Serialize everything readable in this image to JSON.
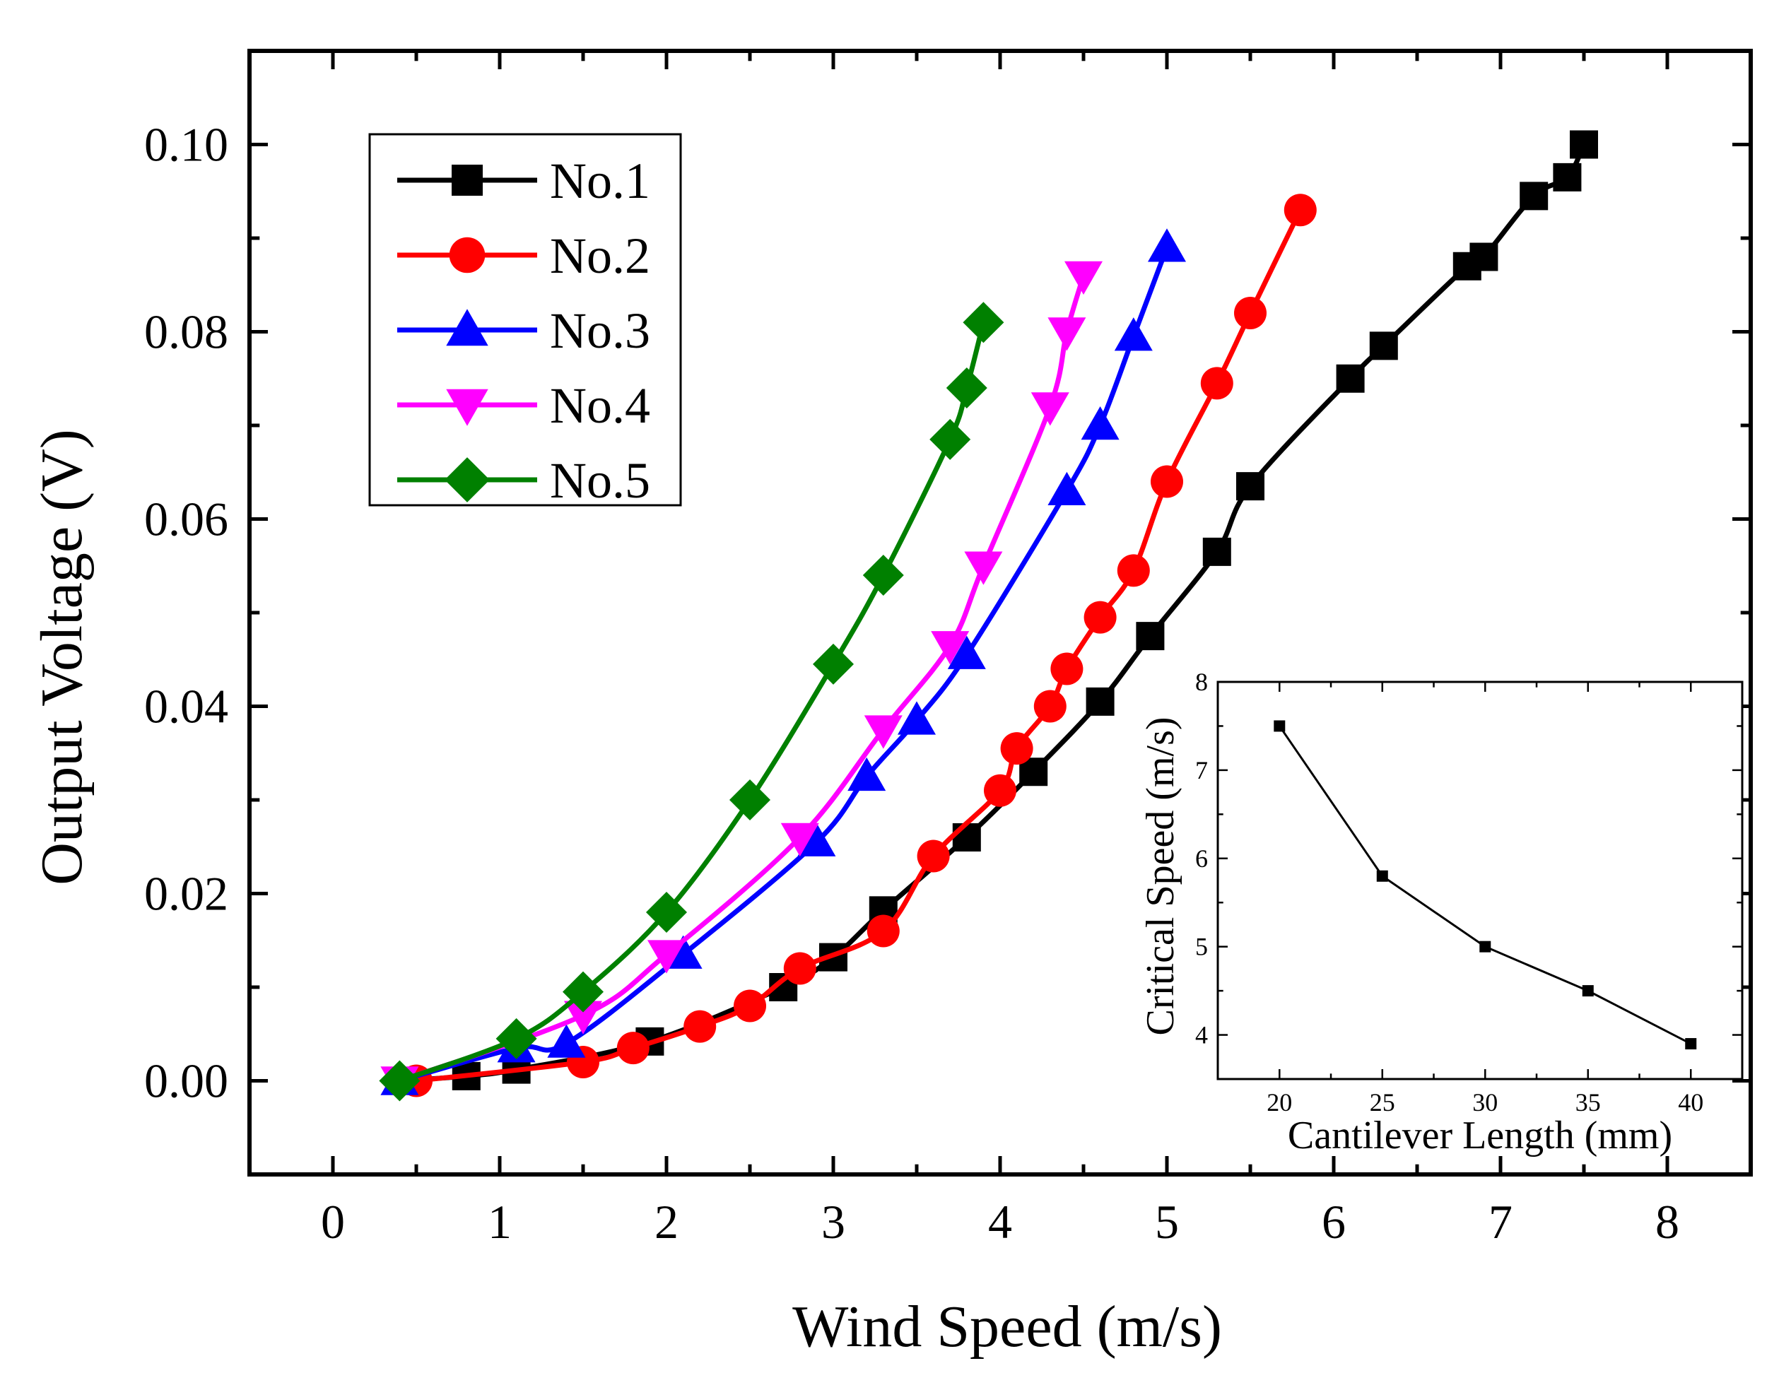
{
  "chart_data": [
    {
      "type": "line",
      "title": "",
      "xlabel": "Wind Speed (m/s)",
      "ylabel": "Output Voltage (V)",
      "xlim": [
        -0.5,
        8.5
      ],
      "ylim": [
        -0.01,
        0.11
      ],
      "x_ticks": [
        "0",
        "1",
        "2",
        "3",
        "4",
        "5",
        "6",
        "7",
        "8"
      ],
      "y_ticks": [
        "0.00",
        "0.02",
        "0.04",
        "0.06",
        "0.08",
        "0.10"
      ],
      "x_tick_values": [
        0,
        1,
        2,
        3,
        4,
        5,
        6,
        7,
        8
      ],
      "y_tick_values": [
        0,
        0.02,
        0.04,
        0.06,
        0.08,
        0.1
      ],
      "legend_position": "top-left",
      "series": [
        {
          "name": "No.1",
          "color": "#000000",
          "marker": "square",
          "points": [
            [
              0.4,
              0.0
            ],
            [
              0.8,
              0.0005
            ],
            [
              1.1,
              0.0012
            ],
            [
              1.9,
              0.0042
            ],
            [
              2.7,
              0.01
            ],
            [
              3.0,
              0.0132
            ],
            [
              3.3,
              0.0182
            ],
            [
              3.8,
              0.026
            ],
            [
              4.2,
              0.033
            ],
            [
              4.6,
              0.0405
            ],
            [
              4.9,
              0.0475
            ],
            [
              5.3,
              0.0565
            ],
            [
              5.5,
              0.0635
            ],
            [
              6.1,
              0.075
            ],
            [
              6.3,
              0.0785
            ],
            [
              6.8,
              0.087
            ],
            [
              6.9,
              0.088
            ],
            [
              7.2,
              0.0945
            ],
            [
              7.4,
              0.0965
            ],
            [
              7.5,
              0.1
            ]
          ]
        },
        {
          "name": "No.2",
          "color": "#ff0000",
          "marker": "circle",
          "points": [
            [
              0.5,
              0.0
            ],
            [
              1.5,
              0.002
            ],
            [
              1.8,
              0.0035
            ],
            [
              2.2,
              0.0058
            ],
            [
              2.5,
              0.008
            ],
            [
              2.8,
              0.012
            ],
            [
              3.3,
              0.016
            ],
            [
              3.6,
              0.024
            ],
            [
              4.0,
              0.031
            ],
            [
              4.1,
              0.0355
            ],
            [
              4.3,
              0.04
            ],
            [
              4.4,
              0.044
            ],
            [
              4.6,
              0.0495
            ],
            [
              4.8,
              0.0545
            ],
            [
              5.0,
              0.064
            ],
            [
              5.3,
              0.0745
            ],
            [
              5.5,
              0.082
            ],
            [
              5.8,
              0.093
            ]
          ]
        },
        {
          "name": "No.3",
          "color": "#0000ff",
          "marker": "triangle-up",
          "points": [
            [
              0.4,
              0.0
            ],
            [
              1.1,
              0.0035
            ],
            [
              1.4,
              0.004
            ],
            [
              2.1,
              0.0135
            ],
            [
              2.9,
              0.0255
            ],
            [
              3.2,
              0.0325
            ],
            [
              3.5,
              0.0385
            ],
            [
              3.8,
              0.0455
            ],
            [
              4.4,
              0.063
            ],
            [
              4.6,
              0.07
            ],
            [
              4.8,
              0.0795
            ],
            [
              5.0,
              0.089
            ]
          ]
        },
        {
          "name": "No.4",
          "color": "#ff00ff",
          "marker": "triangle-down",
          "points": [
            [
              0.4,
              0.0
            ],
            [
              1.5,
              0.007
            ],
            [
              2.0,
              0.0135
            ],
            [
              2.8,
              0.026
            ],
            [
              3.3,
              0.0375
            ],
            [
              3.7,
              0.0465
            ],
            [
              3.9,
              0.055
            ],
            [
              4.3,
              0.072
            ],
            [
              4.4,
              0.08
            ],
            [
              4.5,
              0.086
            ]
          ]
        },
        {
          "name": "No.5",
          "color": "#008000",
          "marker": "diamond",
          "points": [
            [
              0.4,
              0.0
            ],
            [
              1.1,
              0.0045
            ],
            [
              1.5,
              0.0095
            ],
            [
              2.0,
              0.018
            ],
            [
              2.5,
              0.03
            ],
            [
              3.0,
              0.0445
            ],
            [
              3.3,
              0.054
            ],
            [
              3.7,
              0.0685
            ],
            [
              3.8,
              0.074
            ],
            [
              3.9,
              0.081
            ]
          ]
        }
      ]
    },
    {
      "type": "line",
      "title": "",
      "xlabel": "Cantilever Length (mm)",
      "ylabel": "Critical Speed (m/s)",
      "xlim": [
        17,
        42.5
      ],
      "ylim": [
        3.5,
        8
      ],
      "x_ticks": [
        "20",
        "25",
        "30",
        "35",
        "40"
      ],
      "y_ticks": [
        "4",
        "5",
        "6",
        "7",
        "8"
      ],
      "x_tick_values": [
        20,
        25,
        30,
        35,
        40
      ],
      "y_tick_values": [
        4,
        5,
        6,
        7,
        8
      ],
      "position": "inset bottom-right",
      "series": [
        {
          "name": "Critical Speed",
          "color": "#000000",
          "marker": "square",
          "points": [
            [
              20,
              7.5
            ],
            [
              25,
              5.8
            ],
            [
              30,
              5.0
            ],
            [
              35,
              4.5
            ],
            [
              40,
              3.9
            ]
          ]
        }
      ]
    }
  ]
}
